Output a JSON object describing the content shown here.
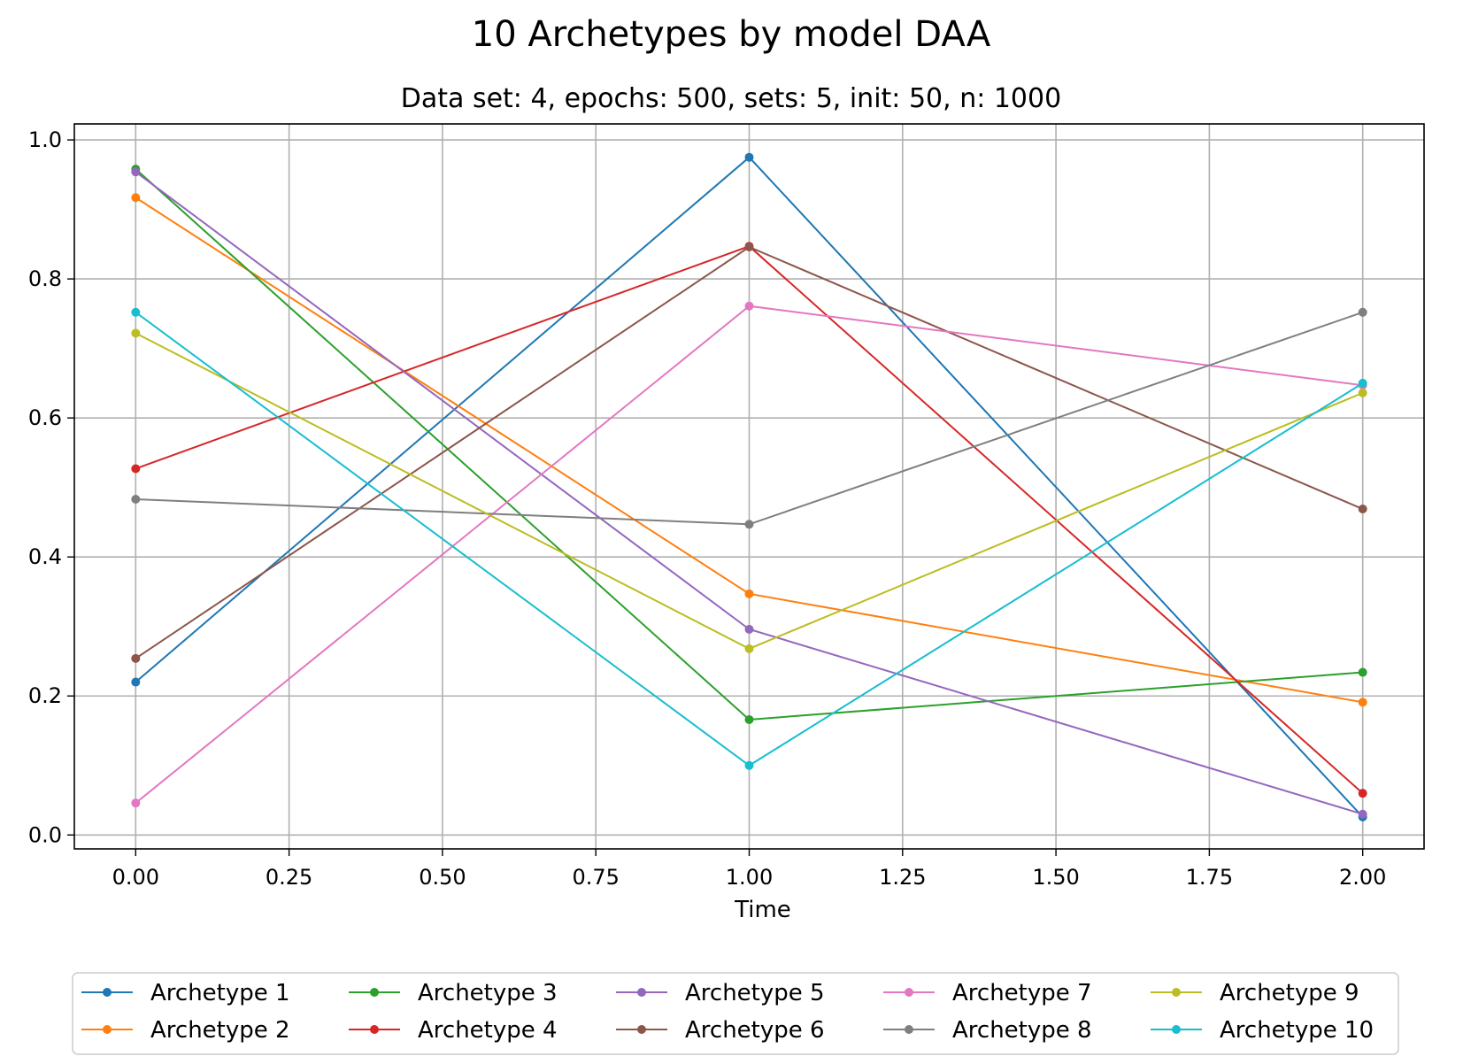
{
  "chart_data": {
    "type": "line",
    "title": "10 Archetypes by model DAA",
    "subtitle": "Data set: 4, epochs: 500, sets: 5, init: 50, n: 1000",
    "xlabel": "Time",
    "ylabel": "",
    "x": [
      0,
      1,
      2
    ],
    "xlim": [
      -0.1,
      2.1
    ],
    "ylim": [
      -0.02,
      1.023
    ],
    "xticks": [
      0.0,
      0.25,
      0.5,
      0.75,
      1.0,
      1.25,
      1.5,
      1.75,
      2.0
    ],
    "xtick_labels": [
      "0.00",
      "0.25",
      "0.50",
      "0.75",
      "1.00",
      "1.25",
      "1.50",
      "1.75",
      "2.00"
    ],
    "yticks": [
      0.0,
      0.2,
      0.4,
      0.6,
      0.8,
      1.0
    ],
    "ytick_labels": [
      "0.0",
      "0.2",
      "0.4",
      "0.6",
      "0.8",
      "1.0"
    ],
    "grid": true,
    "legend_placement": "bottom-center, below plot, 5 columns",
    "series": [
      {
        "name": "Archetype 1",
        "color": "#1f77b4",
        "values": [
          0.22,
          0.975,
          0.026
        ]
      },
      {
        "name": "Archetype 2",
        "color": "#ff7f0e",
        "values": [
          0.917,
          0.347,
          0.191
        ]
      },
      {
        "name": "Archetype 3",
        "color": "#2ca02c",
        "values": [
          0.958,
          0.166,
          0.234
        ]
      },
      {
        "name": "Archetype 4",
        "color": "#d62728",
        "values": [
          0.527,
          0.847,
          0.06
        ]
      },
      {
        "name": "Archetype 5",
        "color": "#9467bd",
        "values": [
          0.954,
          0.296,
          0.03
        ]
      },
      {
        "name": "Archetype 6",
        "color": "#8c564b",
        "values": [
          0.254,
          0.846,
          0.469
        ]
      },
      {
        "name": "Archetype 7",
        "color": "#e377c2",
        "values": [
          0.046,
          0.761,
          0.647
        ]
      },
      {
        "name": "Archetype 8",
        "color": "#7f7f7f",
        "values": [
          0.483,
          0.447,
          0.752
        ]
      },
      {
        "name": "Archetype 9",
        "color": "#bcbd22",
        "values": [
          0.722,
          0.268,
          0.636
        ]
      },
      {
        "name": "Archetype 10",
        "color": "#17becf",
        "values": [
          0.752,
          0.1,
          0.65
        ]
      }
    ]
  }
}
